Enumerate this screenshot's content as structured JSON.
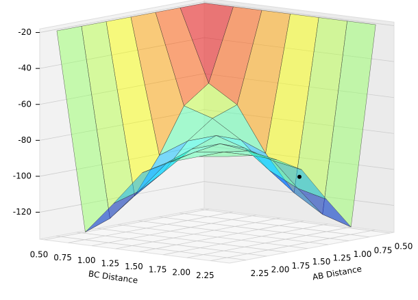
{
  "chart_data": {
    "type": "surface",
    "x_label": "BC Distance",
    "y_label": "AB Distance",
    "x": [
      0.5,
      0.8,
      1.1,
      1.4,
      1.7,
      2.0,
      2.3
    ],
    "y": [
      0.5,
      0.8,
      1.1,
      1.4,
      1.7,
      2.0,
      2.3
    ],
    "z": [
      [
        -20,
        -20,
        -20,
        -20,
        -20,
        -20,
        -20
      ],
      [
        -20,
        -60,
        -70,
        -95,
        -115,
        -125,
        -130
      ],
      [
        -20,
        -70,
        -75,
        -85,
        -100,
        -108,
        -112
      ],
      [
        -20,
        -95,
        -85,
        -80,
        -85,
        -90,
        -93
      ],
      [
        -20,
        -115,
        -100,
        -85,
        -80,
        -82,
        -85
      ],
      [
        -20,
        -125,
        -108,
        -90,
        -82,
        -80,
        -80
      ],
      [
        -20,
        -130,
        -112,
        -93,
        -85,
        -80,
        -78
      ]
    ],
    "point": {
      "x": 1.8,
      "y": 0.85,
      "z": -105
    },
    "colormap": "jet",
    "xlim": [
      0.45,
      2.45
    ],
    "ylim": [
      0.45,
      2.45
    ],
    "zlim": [
      -135,
      -18
    ],
    "xticks": [
      {
        "value": 0.5,
        "label": "0.50"
      },
      {
        "value": 0.75,
        "label": "0.75"
      },
      {
        "value": 1.0,
        "label": "1.00"
      },
      {
        "value": 1.25,
        "label": "1.25"
      },
      {
        "value": 1.5,
        "label": "1.50"
      },
      {
        "value": 1.75,
        "label": "1.75"
      },
      {
        "value": 2.0,
        "label": "2.00"
      },
      {
        "value": 2.25,
        "label": "2.25"
      }
    ],
    "yticks": [
      {
        "value": 0.5,
        "label": "0.50"
      },
      {
        "value": 0.75,
        "label": "0.75"
      },
      {
        "value": 1.0,
        "label": "1.00"
      },
      {
        "value": 1.25,
        "label": "1.25"
      },
      {
        "value": 1.5,
        "label": "1.50"
      },
      {
        "value": 1.75,
        "label": "1.75"
      },
      {
        "value": 2.0,
        "label": "2.00"
      },
      {
        "value": 2.25,
        "label": "2.25"
      }
    ],
    "zticks": [
      -20,
      -40,
      -60,
      -80,
      -100,
      -120
    ]
  }
}
